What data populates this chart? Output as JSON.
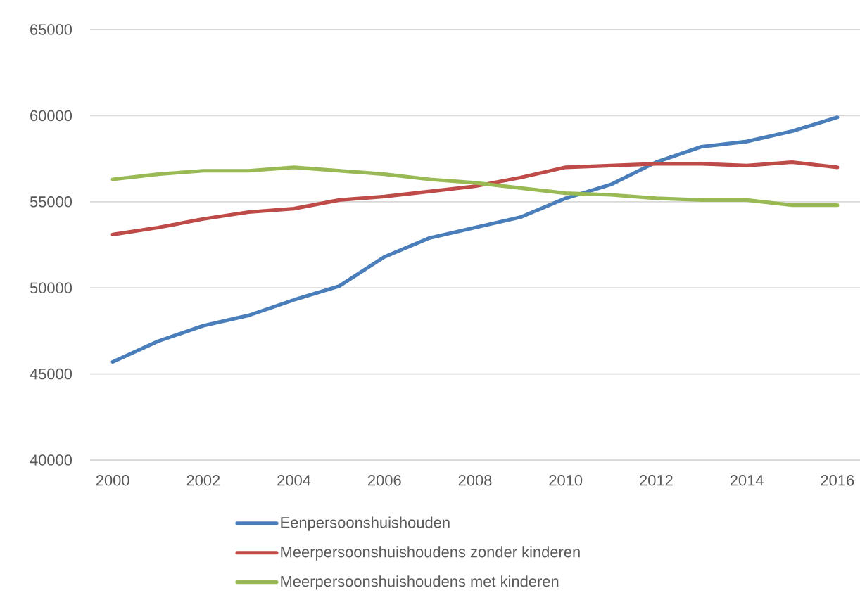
{
  "chart_data": {
    "type": "line",
    "x": [
      2000,
      2001,
      2002,
      2003,
      2004,
      2005,
      2006,
      2007,
      2008,
      2009,
      2010,
      2011,
      2012,
      2013,
      2014,
      2015,
      2016
    ],
    "xlim": [
      1999.5,
      2016.5
    ],
    "xticks": [
      2000,
      2002,
      2004,
      2006,
      2008,
      2010,
      2012,
      2014,
      2016
    ],
    "ylim": [
      40000,
      65000
    ],
    "yticks": [
      40000,
      45000,
      50000,
      55000,
      60000,
      65000
    ],
    "grid": "y",
    "legend": "bottom",
    "series": [
      {
        "name": "Eenpersoonshuishouden",
        "color": "#4a7ebb",
        "values": [
          45700,
          46900,
          47800,
          48400,
          49300,
          50100,
          51800,
          52900,
          53500,
          54100,
          55200,
          56000,
          57300,
          58200,
          58500,
          59100,
          59900
        ]
      },
      {
        "name": "Meerpersoonshuishoudens zonder kinderen",
        "color": "#be4b48",
        "values": [
          53100,
          53500,
          54000,
          54400,
          54600,
          55100,
          55300,
          55600,
          55900,
          56400,
          57000,
          57100,
          57200,
          57200,
          57100,
          57300,
          57000
        ]
      },
      {
        "name": "Meerpersoonshuishoudens met kinderen",
        "color": "#98b954",
        "values": [
          56300,
          56600,
          56800,
          56800,
          57000,
          56800,
          56600,
          56300,
          56100,
          55800,
          55500,
          55400,
          55200,
          55100,
          55100,
          54800,
          54800
        ]
      }
    ]
  }
}
